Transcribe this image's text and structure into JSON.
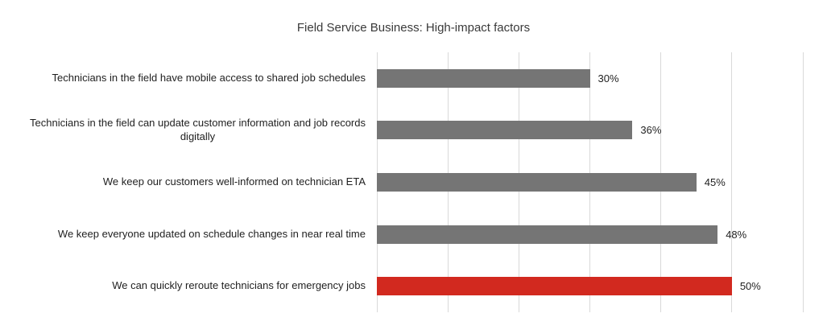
{
  "chart": {
    "title": "Field Service Business: High-impact factors"
  },
  "chart_data": {
    "type": "bar",
    "orientation": "horizontal",
    "title": "Field Service Business: High-impact factors",
    "categories": [
      "Technicians in the field have mobile access to shared job schedules",
      "Technicians in the field can update customer information and job records\ndigitally",
      "We keep our customers well-informed on technician ETA",
      "We keep everyone updated on schedule changes in near real time",
      "We can quickly reroute technicians for emergency jobs"
    ],
    "values": [
      30,
      36,
      45,
      48,
      50
    ],
    "value_labels": [
      "30%",
      "36%",
      "45%",
      "48%",
      "50%"
    ],
    "bar_colors": [
      "#757575",
      "#757575",
      "#757575",
      "#757575",
      "#d2291f"
    ],
    "xlabel": "",
    "ylabel": "",
    "xlim": [
      0,
      60
    ],
    "gridline_interval": 10,
    "grid": true,
    "legend": false,
    "axis_tick_labels_visible": false
  },
  "colors": {
    "bar_gray": "#757575",
    "bar_red": "#d2291f",
    "gridline": "#d9d9d9",
    "title_text": "#3a3a3a",
    "label_text": "#1f1f1f",
    "background": "#ffffff"
  }
}
